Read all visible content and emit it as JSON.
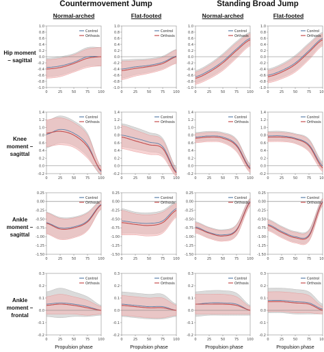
{
  "header": {
    "groups": [
      "Countermovement Jump",
      "Standing Broad Jump"
    ],
    "conditions": [
      "Normal-arched",
      "Flat-footed",
      "Normal-arched",
      "Flat-footed"
    ]
  },
  "rows": [
    "Hip moment – sagittal",
    "Knee moment – sagittal",
    "Ankle moment – sagittal",
    "Ankle moment – frontal"
  ],
  "xlabel": "Propulsion phase",
  "colors": {
    "control": "#5b7fa8",
    "orthosis": "#c44c4c",
    "control_band": "#bdbdbd",
    "orthosis_band": "#f2b8b8"
  },
  "chart_data": [
    {
      "type": "line",
      "row": 0,
      "col": 0,
      "x": [
        0,
        25,
        50,
        75,
        100
      ],
      "ylim": [
        -1.0,
        1.0
      ],
      "yticks": [
        -1.0,
        -0.8,
        -0.6,
        -0.4,
        -0.2,
        0.0,
        0.2,
        0.4,
        0.6,
        0.8,
        1.0
      ],
      "series": [
        {
          "name": "Control",
          "values": [
            -0.35,
            -0.3,
            -0.18,
            0.0,
            0.0
          ],
          "sd": [
            0.3,
            0.3,
            0.28,
            0.3,
            0.3
          ]
        },
        {
          "name": "Orthosis",
          "values": [
            -0.4,
            -0.35,
            -0.22,
            -0.05,
            0.0
          ],
          "sd": [
            0.3,
            0.3,
            0.28,
            0.3,
            0.3
          ]
        }
      ]
    },
    {
      "type": "line",
      "row": 0,
      "col": 1,
      "x": [
        0,
        25,
        50,
        75,
        100
      ],
      "ylim": [
        -1.0,
        1.0
      ],
      "yticks": [
        -1.0,
        -0.8,
        -0.6,
        -0.4,
        -0.2,
        0.0,
        0.2,
        0.4,
        0.6,
        0.8,
        1.0
      ],
      "series": [
        {
          "name": "Control",
          "values": [
            -0.4,
            -0.33,
            -0.28,
            -0.18,
            0.02
          ],
          "sd": [
            0.3,
            0.25,
            0.22,
            0.2,
            0.22
          ]
        },
        {
          "name": "Orthosis",
          "values": [
            -0.45,
            -0.38,
            -0.32,
            -0.22,
            0.0
          ],
          "sd": [
            0.3,
            0.25,
            0.22,
            0.2,
            0.22
          ]
        }
      ]
    },
    {
      "type": "line",
      "row": 0,
      "col": 2,
      "x": [
        0,
        25,
        50,
        75,
        100
      ],
      "ylim": [
        -1.0,
        1.0
      ],
      "yticks": [
        -1.0,
        -0.8,
        -0.6,
        -0.4,
        -0.2,
        0.0,
        0.2,
        0.4,
        0.6,
        0.8,
        1.0
      ],
      "series": [
        {
          "name": "Control",
          "values": [
            -0.65,
            -0.45,
            -0.15,
            0.25,
            0.6
          ],
          "sd": [
            0.2,
            0.22,
            0.25,
            0.25,
            0.2
          ]
        },
        {
          "name": "Orthosis",
          "values": [
            -0.7,
            -0.5,
            -0.2,
            0.2,
            0.55
          ],
          "sd": [
            0.2,
            0.22,
            0.25,
            0.25,
            0.2
          ]
        }
      ]
    },
    {
      "type": "line",
      "row": 0,
      "col": 3,
      "x": [
        0,
        25,
        50,
        75,
        100
      ],
      "ylim": [
        -1.0,
        1.0
      ],
      "yticks": [
        -1.0,
        -0.8,
        -0.6,
        -0.4,
        -0.2,
        0.0,
        0.2,
        0.4,
        0.6,
        0.8,
        1.0
      ],
      "series": [
        {
          "name": "Control",
          "values": [
            -0.6,
            -0.45,
            -0.2,
            0.2,
            0.6
          ],
          "sd": [
            0.2,
            0.22,
            0.25,
            0.25,
            0.2
          ]
        },
        {
          "name": "Orthosis",
          "values": [
            -0.65,
            -0.5,
            -0.25,
            0.15,
            0.55
          ],
          "sd": [
            0.2,
            0.22,
            0.25,
            0.25,
            0.2
          ]
        }
      ]
    },
    {
      "type": "line",
      "row": 1,
      "col": 0,
      "x": [
        0,
        25,
        50,
        75,
        100
      ],
      "ylim": [
        -0.2,
        1.4
      ],
      "yticks": [
        -0.2,
        0.0,
        0.2,
        0.4,
        0.6,
        0.8,
        1.0,
        1.2,
        1.4
      ],
      "series": [
        {
          "name": "Control",
          "values": [
            0.82,
            0.95,
            0.85,
            0.55,
            -0.15
          ],
          "sd": [
            0.35,
            0.35,
            0.32,
            0.3,
            0.1
          ]
        },
        {
          "name": "Orthosis",
          "values": [
            0.85,
            0.9,
            0.8,
            0.5,
            -0.12
          ],
          "sd": [
            0.35,
            0.35,
            0.32,
            0.3,
            0.1
          ]
        }
      ]
    },
    {
      "type": "line",
      "row": 1,
      "col": 1,
      "x": [
        0,
        25,
        50,
        75,
        100
      ],
      "ylim": [
        -0.2,
        1.4
      ],
      "yticks": [
        -0.2,
        0.0,
        0.2,
        0.4,
        0.6,
        0.8,
        1.0,
        1.2,
        1.4
      ],
      "series": [
        {
          "name": "Control",
          "values": [
            0.8,
            0.72,
            0.62,
            0.5,
            -0.15
          ],
          "sd": [
            0.3,
            0.28,
            0.25,
            0.22,
            0.1
          ]
        },
        {
          "name": "Orthosis",
          "values": [
            0.75,
            0.65,
            0.55,
            0.45,
            -0.18
          ],
          "sd": [
            0.3,
            0.28,
            0.25,
            0.22,
            0.1
          ]
        }
      ]
    },
    {
      "type": "line",
      "row": 1,
      "col": 2,
      "x": [
        0,
        25,
        50,
        75,
        100
      ],
      "ylim": [
        -0.2,
        1.4
      ],
      "yticks": [
        -0.2,
        0.0,
        0.2,
        0.4,
        0.6,
        0.8,
        1.0,
        1.2,
        1.4
      ],
      "series": [
        {
          "name": "Control",
          "values": [
            0.75,
            0.78,
            0.75,
            0.55,
            -0.05
          ],
          "sd": [
            0.12,
            0.12,
            0.12,
            0.15,
            0.1
          ]
        },
        {
          "name": "Orthosis",
          "values": [
            0.72,
            0.75,
            0.72,
            0.52,
            -0.08
          ],
          "sd": [
            0.12,
            0.12,
            0.12,
            0.15,
            0.1
          ]
        }
      ]
    },
    {
      "type": "line",
      "row": 1,
      "col": 3,
      "x": [
        0,
        25,
        50,
        75,
        100
      ],
      "ylim": [
        -0.2,
        1.4
      ],
      "yticks": [
        -0.2,
        0.0,
        0.2,
        0.4,
        0.6,
        0.8,
        1.0,
        1.2,
        1.4
      ],
      "series": [
        {
          "name": "Control",
          "values": [
            0.78,
            0.78,
            0.72,
            0.55,
            0.0
          ],
          "sd": [
            0.12,
            0.12,
            0.12,
            0.15,
            0.1
          ]
        },
        {
          "name": "Orthosis",
          "values": [
            0.75,
            0.75,
            0.7,
            0.52,
            -0.05
          ],
          "sd": [
            0.12,
            0.12,
            0.12,
            0.15,
            0.1
          ]
        }
      ]
    },
    {
      "type": "line",
      "row": 2,
      "col": 0,
      "x": [
        0,
        25,
        50,
        75,
        100
      ],
      "ylim": [
        -1.5,
        0.25
      ],
      "yticks": [
        -1.5,
        -1.25,
        -1.0,
        -0.75,
        -0.5,
        -0.25,
        0.0,
        0.25
      ],
      "series": [
        {
          "name": "Control",
          "values": [
            -0.6,
            -0.75,
            -0.72,
            -0.55,
            -0.08
          ],
          "sd": [
            0.3,
            0.3,
            0.28,
            0.25,
            0.12
          ]
        },
        {
          "name": "Orthosis",
          "values": [
            -0.62,
            -0.78,
            -0.75,
            -0.58,
            -0.1
          ],
          "sd": [
            0.3,
            0.3,
            0.28,
            0.25,
            0.12
          ]
        }
      ]
    },
    {
      "type": "line",
      "row": 2,
      "col": 1,
      "x": [
        0,
        25,
        50,
        75,
        100
      ],
      "ylim": [
        -1.5,
        0.25
      ],
      "yticks": [
        -1.5,
        -1.25,
        -1.0,
        -0.75,
        -0.5,
        -0.25,
        0.0,
        0.25
      ],
      "series": [
        {
          "name": "Control",
          "values": [
            -0.55,
            -0.6,
            -0.62,
            -0.55,
            -0.2
          ],
          "sd": [
            0.35,
            0.3,
            0.3,
            0.3,
            0.2
          ]
        },
        {
          "name": "Orthosis",
          "values": [
            -0.6,
            -0.65,
            -0.68,
            -0.6,
            -0.25
          ],
          "sd": [
            0.35,
            0.3,
            0.3,
            0.3,
            0.2
          ]
        }
      ]
    },
    {
      "type": "line",
      "row": 2,
      "col": 2,
      "x": [
        0,
        25,
        50,
        75,
        100
      ],
      "ylim": [
        -1.5,
        0.25
      ],
      "yticks": [
        -1.5,
        -1.25,
        -1.0,
        -0.75,
        -0.5,
        -0.25,
        0.0,
        0.25
      ],
      "series": [
        {
          "name": "Control",
          "values": [
            -0.72,
            -0.88,
            -0.95,
            -0.8,
            0.0
          ],
          "sd": [
            0.15,
            0.15,
            0.15,
            0.15,
            0.1
          ]
        },
        {
          "name": "Orthosis",
          "values": [
            -0.75,
            -0.9,
            -0.98,
            -0.82,
            -0.02
          ],
          "sd": [
            0.15,
            0.15,
            0.15,
            0.15,
            0.1
          ]
        }
      ]
    },
    {
      "type": "line",
      "row": 2,
      "col": 3,
      "x": [
        0,
        25,
        50,
        75,
        100
      ],
      "ylim": [
        -1.5,
        0.25
      ],
      "yticks": [
        -1.5,
        -1.25,
        -1.0,
        -0.75,
        -0.5,
        -0.25,
        0.0,
        0.25
      ],
      "series": [
        {
          "name": "Control",
          "values": [
            -0.65,
            -0.85,
            -1.0,
            -0.95,
            0.0
          ],
          "sd": [
            0.15,
            0.15,
            0.15,
            0.15,
            0.1
          ]
        },
        {
          "name": "Orthosis",
          "values": [
            -0.68,
            -0.88,
            -1.03,
            -0.98,
            -0.02
          ],
          "sd": [
            0.15,
            0.15,
            0.15,
            0.15,
            0.1
          ]
        }
      ]
    },
    {
      "type": "line",
      "row": 3,
      "col": 0,
      "x": [
        0,
        25,
        50,
        75,
        100
      ],
      "ylim": [
        -0.2,
        0.3
      ],
      "yticks": [
        -0.2,
        -0.1,
        0.0,
        0.1,
        0.2,
        0.3
      ],
      "series": [
        {
          "name": "Control",
          "values": [
            0.05,
            0.06,
            0.05,
            0.03,
            0.0
          ],
          "sd": [
            0.1,
            0.12,
            0.1,
            0.08,
            0.04
          ]
        },
        {
          "name": "Orthosis",
          "values": [
            0.04,
            0.05,
            0.04,
            0.02,
            0.0
          ],
          "sd": [
            0.07,
            0.08,
            0.07,
            0.06,
            0.03
          ]
        }
      ]
    },
    {
      "type": "line",
      "row": 3,
      "col": 1,
      "x": [
        0,
        25,
        50,
        75,
        100
      ],
      "ylim": [
        -0.2,
        0.3
      ],
      "yticks": [
        -0.2,
        -0.1,
        0.0,
        0.1,
        0.2,
        0.3
      ],
      "series": [
        {
          "name": "Control",
          "values": [
            0.05,
            0.04,
            0.03,
            0.03,
            0.0
          ],
          "sd": [
            0.1,
            0.1,
            0.1,
            0.1,
            0.05
          ]
        },
        {
          "name": "Orthosis",
          "values": [
            0.04,
            0.03,
            0.02,
            0.02,
            0.0
          ],
          "sd": [
            0.08,
            0.08,
            0.08,
            0.08,
            0.04
          ]
        }
      ]
    },
    {
      "type": "line",
      "row": 3,
      "col": 2,
      "x": [
        0,
        25,
        50,
        75,
        100
      ],
      "ylim": [
        -0.2,
        0.3
      ],
      "yticks": [
        -0.2,
        -0.1,
        0.0,
        0.1,
        0.2,
        0.3
      ],
      "series": [
        {
          "name": "Control",
          "values": [
            0.05,
            0.06,
            0.06,
            0.05,
            0.0
          ],
          "sd": [
            0.1,
            0.1,
            0.1,
            0.09,
            0.04
          ]
        },
        {
          "name": "Orthosis",
          "values": [
            0.05,
            0.05,
            0.05,
            0.04,
            0.0
          ],
          "sd": [
            0.08,
            0.08,
            0.08,
            0.07,
            0.03
          ]
        }
      ]
    },
    {
      "type": "line",
      "row": 3,
      "col": 3,
      "x": [
        0,
        25,
        50,
        75,
        100
      ],
      "ylim": [
        -0.2,
        0.3
      ],
      "yticks": [
        -0.2,
        -0.1,
        0.0,
        0.1,
        0.2,
        0.3
      ],
      "series": [
        {
          "name": "Control",
          "values": [
            0.08,
            0.08,
            0.07,
            0.06,
            0.01
          ],
          "sd": [
            0.1,
            0.1,
            0.1,
            0.09,
            0.04
          ]
        },
        {
          "name": "Orthosis",
          "values": [
            0.07,
            0.07,
            0.06,
            0.05,
            0.0
          ],
          "sd": [
            0.08,
            0.08,
            0.08,
            0.07,
            0.03
          ]
        }
      ]
    }
  ]
}
